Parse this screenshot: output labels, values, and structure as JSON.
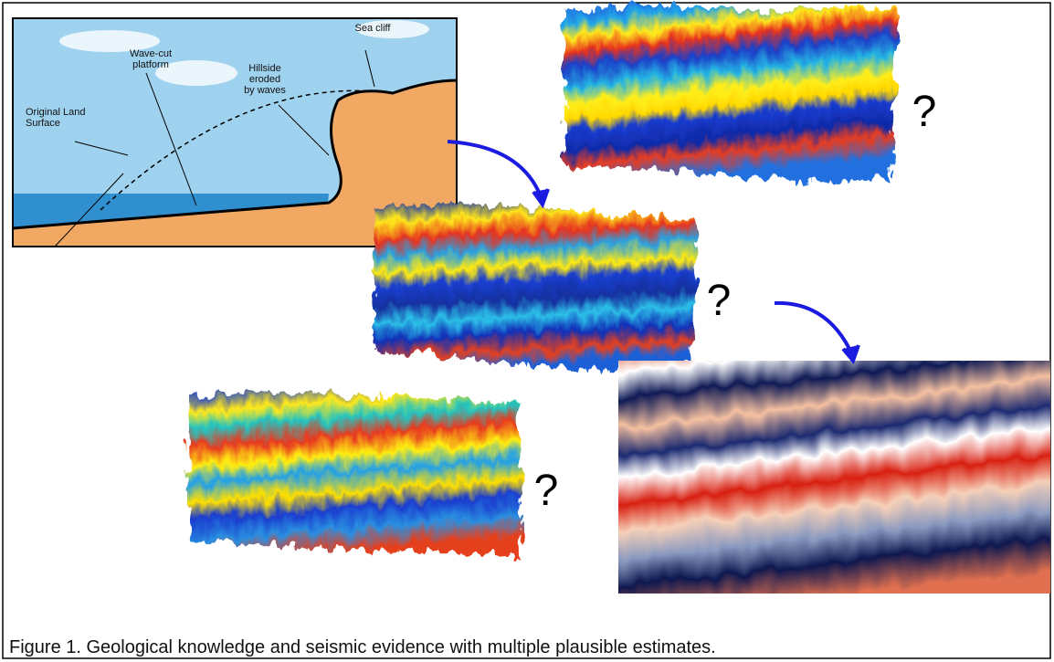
{
  "diagram": {
    "labels": [
      {
        "lines": [
          "Sea cliff"
        ]
      },
      {
        "lines": [
          "Hillside",
          "eroded",
          "by waves"
        ]
      },
      {
        "lines": [
          "Wave-cut",
          "platform"
        ]
      },
      {
        "lines": [
          "Original Land",
          "Surface"
        ]
      }
    ]
  },
  "question_marks": [
    "?",
    "?",
    "?"
  ],
  "caption": "Figure 1. Geological knowledge and seismic evidence with multiple plausible estimates."
}
